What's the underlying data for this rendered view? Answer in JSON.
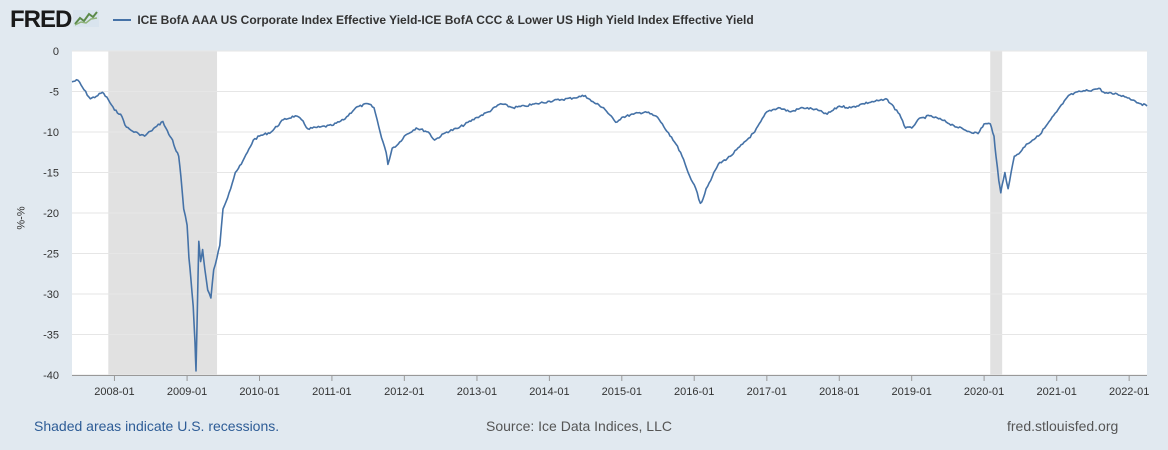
{
  "header": {
    "logo_text": "FRED",
    "logo_icon": "line-chart-icon"
  },
  "footer": {
    "recession_note": "Shaded areas indicate U.S. recessions.",
    "source": "Source: Ice Data Indices, LLC",
    "site": "fred.stlouisfed.org"
  },
  "colors": {
    "series": "#4572a7",
    "recession": "#e1e1e1",
    "background": "#e1e9f0",
    "plot": "#ffffff"
  },
  "chart_data": {
    "type": "line",
    "xlabel": "",
    "ylabel": "%-%",
    "ylim": [
      -40,
      0
    ],
    "yticks": [
      0,
      -5,
      -10,
      -15,
      -20,
      -25,
      -30,
      -35,
      -40
    ],
    "xlim": [
      "2007-06-01",
      "2022-04-01"
    ],
    "xticks": [
      "2008-01",
      "2009-01",
      "2010-01",
      "2011-01",
      "2012-01",
      "2013-01",
      "2014-01",
      "2015-01",
      "2016-01",
      "2017-01",
      "2018-01",
      "2019-01",
      "2020-01",
      "2021-01",
      "2022-01"
    ],
    "grid": true,
    "legend_position": "top-left",
    "recessions": [
      {
        "start": "2007-12-01",
        "end": "2009-06-01"
      },
      {
        "start": "2020-02-01",
        "end": "2020-04-01"
      }
    ],
    "series": [
      {
        "name": "ICE BofA AAA US Corporate Index Effective Yield-ICE BofA CCC & Lower US High Yield Index Effective Yield",
        "points": [
          [
            "2007-06-01",
            -3.8
          ],
          [
            "2007-07-01",
            -3.6
          ],
          [
            "2007-08-01",
            -4.8
          ],
          [
            "2007-09-01",
            -5.9
          ],
          [
            "2007-10-01",
            -5.6
          ],
          [
            "2007-11-01",
            -5.1
          ],
          [
            "2007-12-01",
            -6.0
          ],
          [
            "2008-01-01",
            -7.3
          ],
          [
            "2008-02-01",
            -7.8
          ],
          [
            "2008-03-01",
            -9.4
          ],
          [
            "2008-04-01",
            -9.9
          ],
          [
            "2008-05-01",
            -10.2
          ],
          [
            "2008-06-01",
            -10.5
          ],
          [
            "2008-07-01",
            -9.9
          ],
          [
            "2008-08-01",
            -9.3
          ],
          [
            "2008-09-01",
            -8.7
          ],
          [
            "2008-10-01",
            -10.3
          ],
          [
            "2008-10-20",
            -11.0
          ],
          [
            "2008-11-01",
            -12.0
          ],
          [
            "2008-11-20",
            -13.0
          ],
          [
            "2008-12-01",
            -15.5
          ],
          [
            "2008-12-15",
            -19.5
          ],
          [
            "2009-01-01",
            -21.5
          ],
          [
            "2009-01-10",
            -25.5
          ],
          [
            "2009-01-20",
            -28.0
          ],
          [
            "2009-02-01",
            -31.5
          ],
          [
            "2009-02-10",
            -36.0
          ],
          [
            "2009-02-15",
            -39.5
          ],
          [
            "2009-02-20",
            -34.0
          ],
          [
            "2009-02-25",
            -28.0
          ],
          [
            "2009-03-01",
            -23.5
          ],
          [
            "2009-03-10",
            -26.0
          ],
          [
            "2009-03-20",
            -24.5
          ],
          [
            "2009-04-01",
            -27.0
          ],
          [
            "2009-04-15",
            -29.5
          ],
          [
            "2009-05-01",
            -30.5
          ],
          [
            "2009-05-15",
            -27.0
          ],
          [
            "2009-06-01",
            -25.5
          ],
          [
            "2009-06-15",
            -24.0
          ],
          [
            "2009-07-01",
            -19.5
          ],
          [
            "2009-08-01",
            -17.5
          ],
          [
            "2009-09-01",
            -15.0
          ],
          [
            "2009-10-01",
            -14.0
          ],
          [
            "2009-11-01",
            -12.5
          ],
          [
            "2009-12-01",
            -11.0
          ],
          [
            "2010-01-01",
            -10.5
          ],
          [
            "2010-03-01",
            -10.0
          ],
          [
            "2010-05-01",
            -8.5
          ],
          [
            "2010-07-01",
            -8.0
          ],
          [
            "2010-08-01",
            -8.5
          ],
          [
            "2010-09-01",
            -9.6
          ],
          [
            "2010-11-01",
            -9.4
          ],
          [
            "2011-01-01",
            -9.2
          ],
          [
            "2011-03-01",
            -8.5
          ],
          [
            "2011-05-01",
            -7.0
          ],
          [
            "2011-07-01",
            -6.5
          ],
          [
            "2011-08-01",
            -7.0
          ],
          [
            "2011-09-01",
            -10.0
          ],
          [
            "2011-10-01",
            -12.5
          ],
          [
            "2011-10-10",
            -14.0
          ],
          [
            "2011-11-01",
            -12.0
          ],
          [
            "2011-12-01",
            -11.5
          ],
          [
            "2012-01-01",
            -10.5
          ],
          [
            "2012-03-01",
            -9.5
          ],
          [
            "2012-05-01",
            -10.0
          ],
          [
            "2012-06-01",
            -11.0
          ],
          [
            "2012-08-01",
            -10.0
          ],
          [
            "2012-10-01",
            -9.5
          ],
          [
            "2013-01-01",
            -8.2
          ],
          [
            "2013-03-01",
            -7.5
          ],
          [
            "2013-05-01",
            -6.5
          ],
          [
            "2013-07-01",
            -7.0
          ],
          [
            "2013-09-01",
            -6.8
          ],
          [
            "2013-11-01",
            -6.5
          ],
          [
            "2014-01-01",
            -6.2
          ],
          [
            "2014-03-01",
            -6.0
          ],
          [
            "2014-05-01",
            -5.8
          ],
          [
            "2014-07-01",
            -5.5
          ],
          [
            "2014-08-01",
            -6.2
          ],
          [
            "2014-10-01",
            -7.0
          ],
          [
            "2014-12-01",
            -8.8
          ],
          [
            "2015-01-01",
            -8.2
          ],
          [
            "2015-03-01",
            -7.8
          ],
          [
            "2015-05-01",
            -7.5
          ],
          [
            "2015-07-01",
            -8.2
          ],
          [
            "2015-09-01",
            -10.5
          ],
          [
            "2015-10-01",
            -11.5
          ],
          [
            "2015-11-01",
            -13.0
          ],
          [
            "2015-12-01",
            -15.0
          ],
          [
            "2016-01-01",
            -16.5
          ],
          [
            "2016-02-01",
            -18.8
          ],
          [
            "2016-02-15",
            -18.2
          ],
          [
            "2016-03-01",
            -17.0
          ],
          [
            "2016-04-01",
            -15.5
          ],
          [
            "2016-05-01",
            -14.0
          ],
          [
            "2016-07-01",
            -13.0
          ],
          [
            "2016-09-01",
            -11.5
          ],
          [
            "2016-11-01",
            -10.0
          ],
          [
            "2017-01-01",
            -7.5
          ],
          [
            "2017-03-01",
            -7.0
          ],
          [
            "2017-05-01",
            -7.5
          ],
          [
            "2017-07-01",
            -7.0
          ],
          [
            "2017-09-01",
            -7.2
          ],
          [
            "2017-11-01",
            -7.8
          ],
          [
            "2018-01-01",
            -6.8
          ],
          [
            "2018-03-01",
            -7.0
          ],
          [
            "2018-05-01",
            -6.5
          ],
          [
            "2018-07-01",
            -6.2
          ],
          [
            "2018-09-01",
            -6.0
          ],
          [
            "2018-11-01",
            -7.8
          ],
          [
            "2018-12-01",
            -9.5
          ],
          [
            "2019-01-01",
            -9.5
          ],
          [
            "2019-02-01",
            -8.5
          ],
          [
            "2019-04-01",
            -8.0
          ],
          [
            "2019-06-01",
            -8.5
          ],
          [
            "2019-08-01",
            -9.2
          ],
          [
            "2019-10-01",
            -9.8
          ],
          [
            "2019-12-01",
            -10.2
          ],
          [
            "2020-01-01",
            -9.0
          ],
          [
            "2020-02-01",
            -9.0
          ],
          [
            "2020-02-20",
            -10.5
          ],
          [
            "2020-03-01",
            -13.0
          ],
          [
            "2020-03-15",
            -16.0
          ],
          [
            "2020-03-25",
            -17.5
          ],
          [
            "2020-04-01",
            -16.5
          ],
          [
            "2020-04-15",
            -15.0
          ],
          [
            "2020-05-01",
            -17.0
          ],
          [
            "2020-06-01",
            -13.0
          ],
          [
            "2020-07-01",
            -12.5
          ],
          [
            "2020-08-01",
            -11.5
          ],
          [
            "2020-09-01",
            -11.0
          ],
          [
            "2020-10-01",
            -10.5
          ],
          [
            "2020-11-01",
            -9.5
          ],
          [
            "2020-12-01",
            -8.5
          ],
          [
            "2021-01-01",
            -7.5
          ],
          [
            "2021-02-01",
            -6.5
          ],
          [
            "2021-03-01",
            -5.5
          ],
          [
            "2021-05-01",
            -5.0
          ],
          [
            "2021-07-01",
            -4.8
          ],
          [
            "2021-08-01",
            -4.6
          ],
          [
            "2021-09-01",
            -5.2
          ],
          [
            "2021-11-01",
            -5.3
          ],
          [
            "2022-01-01",
            -5.8
          ],
          [
            "2022-02-01",
            -6.2
          ],
          [
            "2022-03-01",
            -6.5
          ],
          [
            "2022-04-01",
            -6.8
          ]
        ]
      }
    ]
  }
}
